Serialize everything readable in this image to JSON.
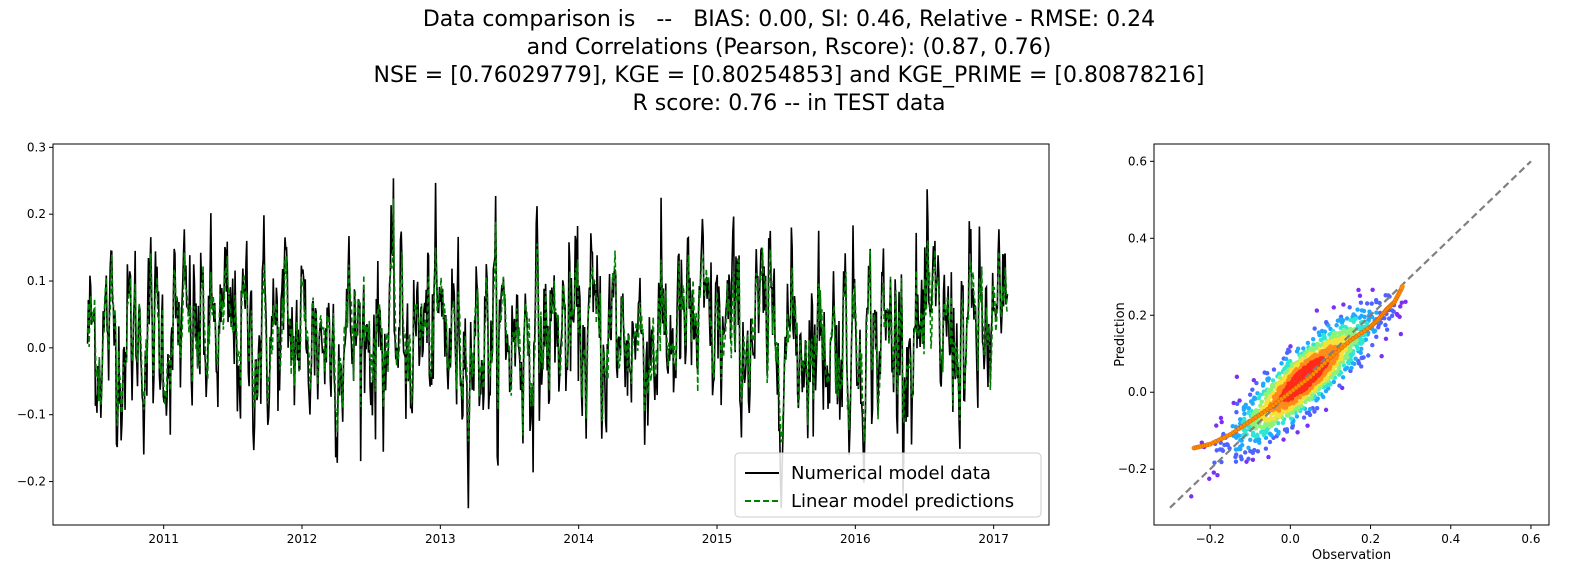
{
  "title_lines": [
    "Data comparison is   --   BIAS: 0.00, SI: 0.46, Relative - RMSE: 0.24",
    "and Correlations (Pearson, Rscore): (0.87, 0.76)",
    "NSE = [0.76029779], KGE = [0.80254853] and KGE_PRIME = [0.80878216]",
    "R score: 0.76 -- in TEST data"
  ],
  "chart_data": [
    {
      "type": "line",
      "xlabel": "",
      "ylabel": "",
      "xlim": [
        2010.2,
        2017.4
      ],
      "ylim": [
        -0.265,
        0.305
      ],
      "xticks": [
        2011,
        2012,
        2013,
        2014,
        2015,
        2016,
        2017
      ],
      "xtick_labels": [
        "2011",
        "2012",
        "2013",
        "2014",
        "2015",
        "2016",
        "2017"
      ],
      "yticks": [
        -0.2,
        -0.1,
        0.0,
        0.1,
        0.2,
        0.3
      ],
      "ytick_labels": [
        "−0.2",
        "−0.1",
        "0.0",
        "0.1",
        "0.2",
        "0.3"
      ],
      "x_range": [
        2010.45,
        2017.1
      ],
      "legend": "bottom-right",
      "series": [
        {
          "name": "Numerical model data",
          "color": "#000000",
          "style": "solid",
          "y_range": [
            -0.24,
            0.282
          ]
        },
        {
          "name": "Linear model predictions",
          "color": "#008000",
          "style": "dashed",
          "y_range": [
            -0.14,
            0.277
          ]
        }
      ],
      "grid": false
    },
    {
      "type": "scatter",
      "xlabel": "Observation",
      "ylabel": "Prediction",
      "xlim": [
        -0.34,
        0.645
      ],
      "ylim": [
        -0.345,
        0.645
      ],
      "xticks": [
        -0.2,
        0.0,
        0.2,
        0.4,
        0.6
      ],
      "xtick_labels": [
        "−0.2",
        "0.0",
        "0.2",
        "0.4",
        "0.6"
      ],
      "yticks": [
        -0.2,
        0.0,
        0.2,
        0.4,
        0.6
      ],
      "ytick_labels": [
        "−0.2",
        "0.0",
        "0.2",
        "0.4",
        "0.6"
      ],
      "identity_line": {
        "from": [
          -0.3,
          -0.3
        ],
        "to": [
          0.6,
          0.6
        ],
        "color": "#808080",
        "style": "dashed"
      },
      "density_colormap": [
        "#7b2ff7",
        "#4f63ff",
        "#1fa9ff",
        "#2ee6d4",
        "#8cf27a",
        "#f5e23a",
        "#ff8c1a",
        "#ff2a1a"
      ],
      "quantile_curve": {
        "color": "#ff8c00",
        "x": [
          -0.24,
          -0.2,
          -0.15,
          -0.1,
          -0.05,
          0.0,
          0.05,
          0.1,
          0.15,
          0.2,
          0.22,
          0.24,
          0.26,
          0.28
        ],
        "y": [
          -0.145,
          -0.135,
          -0.11,
          -0.075,
          -0.04,
          0.0,
          0.04,
          0.09,
          0.135,
          0.17,
          0.19,
          0.215,
          0.235,
          0.275
        ]
      },
      "grid": false
    }
  ]
}
